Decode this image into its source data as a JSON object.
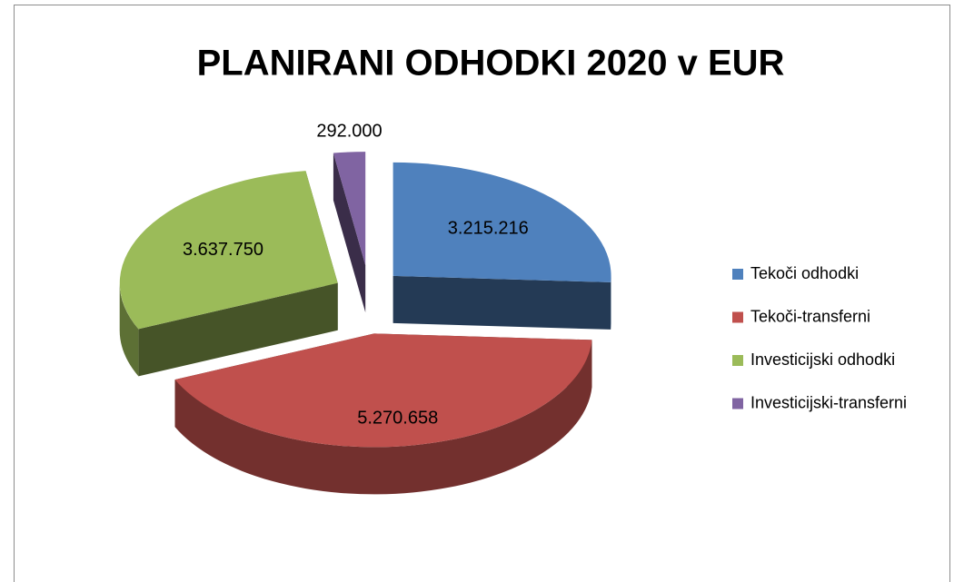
{
  "chart_data": {
    "type": "pie",
    "title": "PLANIRANI ODHODKI 2020  v  EUR",
    "categories": [
      "Tekoči odhodki",
      "Tekoči-transferni",
      "Investicijski odhodki",
      "Investicijski-transferni"
    ],
    "values": [
      3215216,
      5270658,
      3637750,
      292000
    ],
    "value_labels": [
      "3.215.216",
      "5.270.658",
      "3.637.750",
      "292.000"
    ],
    "colors": [
      "#4f81bd",
      "#c0504d",
      "#9bbb59",
      "#8064a2"
    ],
    "legend": "right"
  }
}
